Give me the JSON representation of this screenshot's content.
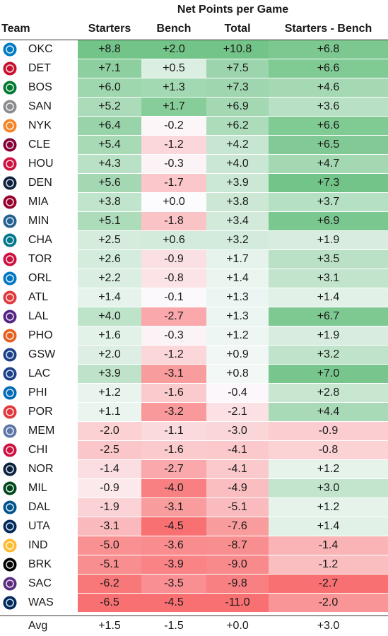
{
  "title": "Net Points per Game",
  "headers": {
    "team": "Team",
    "starters": "Starters",
    "bench": "Bench",
    "total": "Total",
    "diff": "Starters - Bench"
  },
  "footer": {
    "label": "Avg",
    "starters": "+1.5",
    "bench": "-1.5",
    "total": "+0.0",
    "diff": "+3.0"
  },
  "colors": {
    "positive": "#63be7b",
    "negative": "#f8696b",
    "neutral": "#fcfcff"
  },
  "teams": [
    {
      "abbr": "OKC",
      "logo_icon": "okc-logo-icon",
      "color": "#007ac1",
      "starters": "+8.8",
      "bench": "+2.0",
      "total": "+10.8",
      "diff": "+6.8"
    },
    {
      "abbr": "DET",
      "logo_icon": "det-logo-icon",
      "color": "#c8102e",
      "starters": "+7.1",
      "bench": "+0.5",
      "total": "+7.5",
      "diff": "+6.6"
    },
    {
      "abbr": "BOS",
      "logo_icon": "bos-logo-icon",
      "color": "#007a33",
      "starters": "+6.0",
      "bench": "+1.3",
      "total": "+7.3",
      "diff": "+4.6"
    },
    {
      "abbr": "SAN",
      "logo_icon": "san-logo-icon",
      "color": "#8a8d8f",
      "starters": "+5.2",
      "bench": "+1.7",
      "total": "+6.9",
      "diff": "+3.6"
    },
    {
      "abbr": "NYK",
      "logo_icon": "nyk-logo-icon",
      "color": "#f58426",
      "starters": "+6.4",
      "bench": "-0.2",
      "total": "+6.2",
      "diff": "+6.6"
    },
    {
      "abbr": "CLE",
      "logo_icon": "cle-logo-icon",
      "color": "#860038",
      "starters": "+5.4",
      "bench": "-1.2",
      "total": "+4.2",
      "diff": "+6.5"
    },
    {
      "abbr": "HOU",
      "logo_icon": "hou-logo-icon",
      "color": "#ce1141",
      "starters": "+4.3",
      "bench": "-0.3",
      "total": "+4.0",
      "diff": "+4.7"
    },
    {
      "abbr": "DEN",
      "logo_icon": "den-logo-icon",
      "color": "#0e2240",
      "starters": "+5.6",
      "bench": "-1.7",
      "total": "+3.9",
      "diff": "+7.3"
    },
    {
      "abbr": "MIA",
      "logo_icon": "mia-logo-icon",
      "color": "#98002e",
      "starters": "+3.8",
      "bench": "+0.0",
      "total": "+3.8",
      "diff": "+3.7"
    },
    {
      "abbr": "MIN",
      "logo_icon": "min-logo-icon",
      "color": "#236192",
      "starters": "+5.1",
      "bench": "-1.8",
      "total": "+3.4",
      "diff": "+6.9"
    },
    {
      "abbr": "CHA",
      "logo_icon": "cha-logo-icon",
      "color": "#00788c",
      "starters": "+2.5",
      "bench": "+0.6",
      "total": "+3.2",
      "diff": "+1.9"
    },
    {
      "abbr": "TOR",
      "logo_icon": "tor-logo-icon",
      "color": "#ce1141",
      "starters": "+2.6",
      "bench": "-0.9",
      "total": "+1.7",
      "diff": "+3.5"
    },
    {
      "abbr": "ORL",
      "logo_icon": "orl-logo-icon",
      "color": "#0077c0",
      "starters": "+2.2",
      "bench": "-0.8",
      "total": "+1.4",
      "diff": "+3.1"
    },
    {
      "abbr": "ATL",
      "logo_icon": "atl-logo-icon",
      "color": "#e03a3e",
      "starters": "+1.4",
      "bench": "-0.1",
      "total": "+1.3",
      "diff": "+1.4"
    },
    {
      "abbr": "LAL",
      "logo_icon": "lal-logo-icon",
      "color": "#552583",
      "starters": "+4.0",
      "bench": "-2.7",
      "total": "+1.3",
      "diff": "+6.7"
    },
    {
      "abbr": "PHO",
      "logo_icon": "pho-logo-icon",
      "color": "#e56020",
      "starters": "+1.6",
      "bench": "-0.3",
      "total": "+1.2",
      "diff": "+1.9"
    },
    {
      "abbr": "GSW",
      "logo_icon": "gsw-logo-icon",
      "color": "#1d428a",
      "starters": "+2.0",
      "bench": "-1.2",
      "total": "+0.9",
      "diff": "+3.2"
    },
    {
      "abbr": "LAC",
      "logo_icon": "lac-logo-icon",
      "color": "#1d428a",
      "starters": "+3.9",
      "bench": "-3.1",
      "total": "+0.8",
      "diff": "+7.0"
    },
    {
      "abbr": "PHI",
      "logo_icon": "phi-logo-icon",
      "color": "#006bb6",
      "starters": "+1.2",
      "bench": "-1.6",
      "total": "-0.4",
      "diff": "+2.8"
    },
    {
      "abbr": "POR",
      "logo_icon": "por-logo-icon",
      "color": "#e03a3e",
      "starters": "+1.1",
      "bench": "-3.2",
      "total": "-2.1",
      "diff": "+4.4"
    },
    {
      "abbr": "MEM",
      "logo_icon": "mem-logo-icon",
      "color": "#5d76a9",
      "starters": "-2.0",
      "bench": "-1.1",
      "total": "-3.0",
      "diff": "-0.9"
    },
    {
      "abbr": "CHI",
      "logo_icon": "chi-logo-icon",
      "color": "#ce1141",
      "starters": "-2.5",
      "bench": "-1.6",
      "total": "-4.1",
      "diff": "-0.8"
    },
    {
      "abbr": "NOR",
      "logo_icon": "nor-logo-icon",
      "color": "#0c2340",
      "starters": "-1.4",
      "bench": "-2.7",
      "total": "-4.1",
      "diff": "+1.2"
    },
    {
      "abbr": "MIL",
      "logo_icon": "mil-logo-icon",
      "color": "#00471b",
      "starters": "-0.9",
      "bench": "-4.0",
      "total": "-4.9",
      "diff": "+3.0"
    },
    {
      "abbr": "DAL",
      "logo_icon": "dal-logo-icon",
      "color": "#00538c",
      "starters": "-1.9",
      "bench": "-3.1",
      "total": "-5.1",
      "diff": "+1.2"
    },
    {
      "abbr": "UTA",
      "logo_icon": "uta-logo-icon",
      "color": "#002b5c",
      "starters": "-3.1",
      "bench": "-4.5",
      "total": "-7.6",
      "diff": "+1.4"
    },
    {
      "abbr": "IND",
      "logo_icon": "ind-logo-icon",
      "color": "#fdbb30",
      "starters": "-5.0",
      "bench": "-3.6",
      "total": "-8.7",
      "diff": "-1.4"
    },
    {
      "abbr": "BRK",
      "logo_icon": "brk-logo-icon",
      "color": "#000000",
      "starters": "-5.1",
      "bench": "-3.9",
      "total": "-9.0",
      "diff": "-1.2"
    },
    {
      "abbr": "SAC",
      "logo_icon": "sac-logo-icon",
      "color": "#5a2d81",
      "starters": "-6.2",
      "bench": "-3.5",
      "total": "-9.8",
      "diff": "-2.7"
    },
    {
      "abbr": "WAS",
      "logo_icon": "was-logo-icon",
      "color": "#002b5c",
      "starters": "-6.5",
      "bench": "-4.5",
      "total": "-11.0",
      "diff": "-2.0"
    }
  ],
  "chart_data": {
    "type": "table",
    "title": "Net Points per Game",
    "columns": [
      "Team",
      "Starters",
      "Bench",
      "Total",
      "Starters - Bench"
    ],
    "rows": [
      [
        "OKC",
        8.8,
        2.0,
        10.8,
        6.8
      ],
      [
        "DET",
        7.1,
        0.5,
        7.5,
        6.6
      ],
      [
        "BOS",
        6.0,
        1.3,
        7.3,
        4.6
      ],
      [
        "SAN",
        5.2,
        1.7,
        6.9,
        3.6
      ],
      [
        "NYK",
        6.4,
        -0.2,
        6.2,
        6.6
      ],
      [
        "CLE",
        5.4,
        -1.2,
        4.2,
        6.5
      ],
      [
        "HOU",
        4.3,
        -0.3,
        4.0,
        4.7
      ],
      [
        "DEN",
        5.6,
        -1.7,
        3.9,
        7.3
      ],
      [
        "MIA",
        3.8,
        0.0,
        3.8,
        3.7
      ],
      [
        "MIN",
        5.1,
        -1.8,
        3.4,
        6.9
      ],
      [
        "CHA",
        2.5,
        0.6,
        3.2,
        1.9
      ],
      [
        "TOR",
        2.6,
        -0.9,
        1.7,
        3.5
      ],
      [
        "ORL",
        2.2,
        -0.8,
        1.4,
        3.1
      ],
      [
        "ATL",
        1.4,
        -0.1,
        1.3,
        1.4
      ],
      [
        "LAL",
        4.0,
        -2.7,
        1.3,
        6.7
      ],
      [
        "PHO",
        1.6,
        -0.3,
        1.2,
        1.9
      ],
      [
        "GSW",
        2.0,
        -1.2,
        0.9,
        3.2
      ],
      [
        "LAC",
        3.9,
        -3.1,
        0.8,
        7.0
      ],
      [
        "PHI",
        1.2,
        -1.6,
        -0.4,
        2.8
      ],
      [
        "POR",
        1.1,
        -3.2,
        -2.1,
        4.4
      ],
      [
        "MEM",
        -2.0,
        -1.1,
        -3.0,
        -0.9
      ],
      [
        "CHI",
        -2.5,
        -1.6,
        -4.1,
        -0.8
      ],
      [
        "NOR",
        -1.4,
        -2.7,
        -4.1,
        1.2
      ],
      [
        "MIL",
        -0.9,
        -4.0,
        -4.9,
        3.0
      ],
      [
        "DAL",
        -1.9,
        -3.1,
        -5.1,
        1.2
      ],
      [
        "UTA",
        -3.1,
        -4.5,
        -7.6,
        1.4
      ],
      [
        "IND",
        -5.0,
        -3.6,
        -8.7,
        -1.4
      ],
      [
        "BRK",
        -5.1,
        -3.9,
        -9.0,
        -1.2
      ],
      [
        "SAC",
        -6.2,
        -3.5,
        -9.8,
        -2.7
      ],
      [
        "WAS",
        -6.5,
        -4.5,
        -11.0,
        -2.0
      ]
    ],
    "footer": [
      "Avg",
      1.5,
      -1.5,
      0.0,
      3.0
    ]
  }
}
